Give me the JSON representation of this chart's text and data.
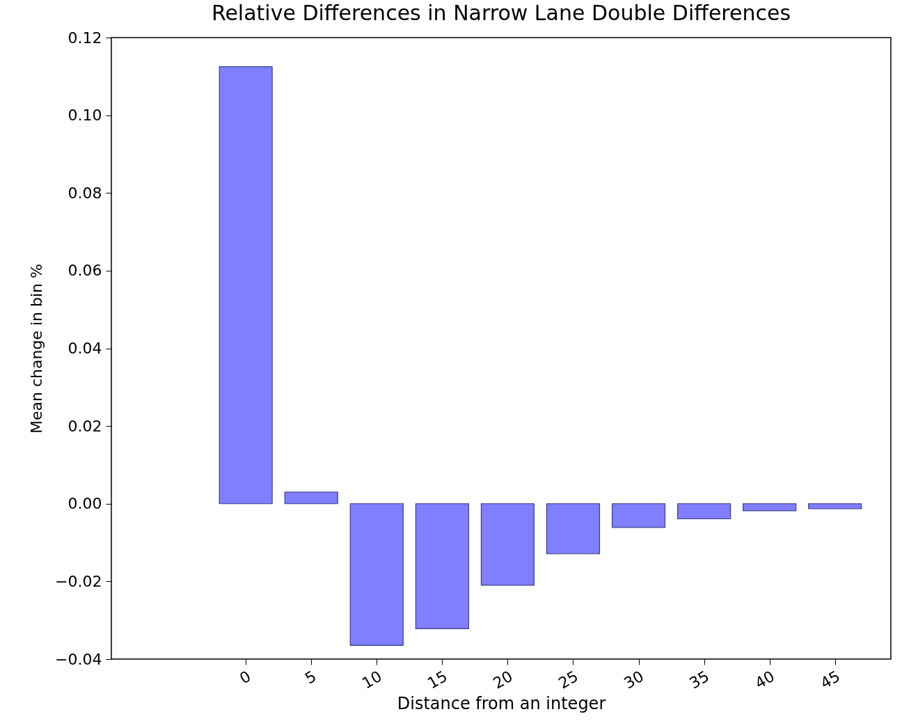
{
  "chart_data": {
    "type": "bar",
    "title": "Relative Differences in Narrow Lane Double Differences",
    "xlabel": "Distance from an integer",
    "ylabel": "Mean change in bin %",
    "x": [
      0,
      5,
      10,
      15,
      20,
      25,
      30,
      35,
      40,
      45
    ],
    "values": [
      0.1125,
      0.003,
      -0.0365,
      -0.0322,
      -0.021,
      -0.0129,
      -0.0061,
      -0.0039,
      -0.0018,
      -0.0013
    ],
    "color": "#7f7fff",
    "xlim": [
      -10,
      49
    ],
    "xticks": [
      0,
      5,
      10,
      15,
      20,
      25,
      30,
      35,
      40,
      45
    ],
    "ylim": [
      -0.04,
      0.12
    ],
    "yticks": [
      {
        "value": -0.04,
        "label": "−0.04"
      },
      {
        "value": -0.02,
        "label": "−0.02"
      },
      {
        "value": 0,
        "label": "0.00"
      },
      {
        "value": 0.02,
        "label": "0.02"
      },
      {
        "value": 0.04,
        "label": "0.04"
      },
      {
        "value": 0.06,
        "label": "0.06"
      },
      {
        "value": 0.08,
        "label": "0.08"
      },
      {
        "value": 0.1,
        "label": "0.10"
      },
      {
        "value": 0.12,
        "label": "0.12"
      }
    ],
    "grid": false
  }
}
